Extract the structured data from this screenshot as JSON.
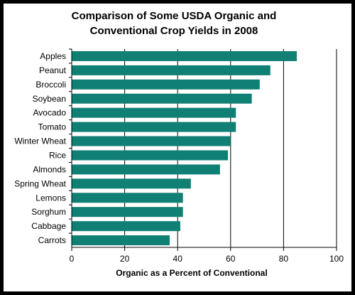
{
  "chart_data": {
    "type": "bar",
    "orientation": "horizontal",
    "title": [
      "Comparison of Some USDA Organic and",
      "Conventional Crop Yields in 2008"
    ],
    "xlabel": "Organic as a Percent of Conventional",
    "ylabel": "",
    "xlim": [
      0,
      100
    ],
    "x_ticks": [
      "0",
      "20",
      "40",
      "60",
      "80",
      "100"
    ],
    "grid": "vertical lines at major ticks",
    "legend": "none",
    "categories": [
      "Apples",
      "Peanut",
      "Broccoli",
      "Soybean",
      "Avocado",
      "Tomato",
      "Winter Wheat",
      "Rice",
      "Almonds",
      "Spring Wheat",
      "Lemons",
      "Sorghum",
      "Cabbage",
      "Carrots"
    ],
    "values": [
      85,
      75,
      71,
      68,
      62,
      62,
      60,
      59,
      56,
      45,
      42,
      42,
      41,
      37
    ],
    "colors": {
      "bar": "#118074",
      "axis": "#000000",
      "frame": "#000000",
      "background": "#ffffff"
    }
  }
}
